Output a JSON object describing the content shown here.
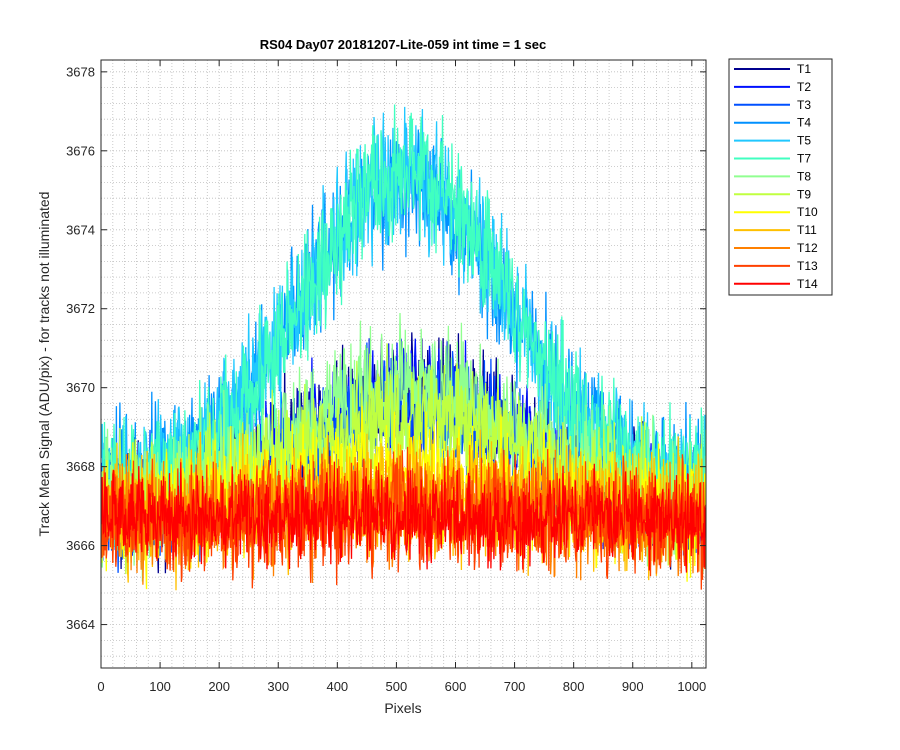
{
  "chart_data": {
    "type": "line",
    "title": "RS04 Day07 20181207-Lite-059 int time = 1 sec",
    "xlabel": "Pixels",
    "ylabel": "Track Mean Signal (ADU/pix) - for tracks not illuminated",
    "xlim": [
      0,
      1024
    ],
    "ylim": [
      3662.9,
      3678.3
    ],
    "xticks": [
      0,
      100,
      200,
      300,
      400,
      500,
      600,
      700,
      800,
      900,
      1000
    ],
    "yticks": [
      3664,
      3666,
      3668,
      3670,
      3672,
      3674,
      3676,
      3678
    ],
    "grid": "major and minor (dotted)",
    "legend_position": "outside-right-top",
    "x": {
      "start": 1,
      "end": 1024,
      "step": 1
    },
    "series": [
      {
        "name": "T1",
        "color": "#00008F",
        "baseline": 3667.0,
        "noise": 1.2,
        "peak": 3.0,
        "peak_center": 520,
        "peak_width": 260
      },
      {
        "name": "T2",
        "color": "#0010FF",
        "baseline": 3667.0,
        "noise": 1.2,
        "peak": 2.8,
        "peak_center": 520,
        "peak_width": 260
      },
      {
        "name": "T3",
        "color": "#0050FF",
        "baseline": 3667.0,
        "noise": 1.2,
        "peak": 2.6,
        "peak_center": 520,
        "peak_width": 260
      },
      {
        "name": "T4",
        "color": "#0090FF",
        "baseline": 3667.5,
        "noise": 1.3,
        "peak": 7.6,
        "peak_center": 510,
        "peak_width": 245
      },
      {
        "name": "T5",
        "color": "#20C8FF",
        "baseline": 3667.5,
        "noise": 1.3,
        "peak": 7.8,
        "peak_center": 515,
        "peak_width": 245
      },
      {
        "name": "T7",
        "color": "#40FFC0",
        "baseline": 3667.5,
        "noise": 1.3,
        "peak": 7.9,
        "peak_center": 520,
        "peak_width": 245
      },
      {
        "name": "T8",
        "color": "#90FF90",
        "baseline": 3667.0,
        "noise": 1.3,
        "peak": 3.0,
        "peak_center": 520,
        "peak_width": 270
      },
      {
        "name": "T9",
        "color": "#C0FF40",
        "baseline": 3667.0,
        "noise": 1.2,
        "peak": 2.2,
        "peak_center": 520,
        "peak_width": 280
      },
      {
        "name": "T10",
        "color": "#FFFF00",
        "baseline": 3666.8,
        "noise": 1.2,
        "peak": 1.0,
        "peak_center": 520,
        "peak_width": 300
      },
      {
        "name": "T11",
        "color": "#FFC000",
        "baseline": 3666.7,
        "noise": 1.2,
        "peak": 0.6,
        "peak_center": 520,
        "peak_width": 300
      },
      {
        "name": "T12",
        "color": "#FF8000",
        "baseline": 3666.6,
        "noise": 1.1,
        "peak": 0.4,
        "peak_center": 520,
        "peak_width": 300
      },
      {
        "name": "T13",
        "color": "#FF4000",
        "baseline": 3666.6,
        "noise": 1.1,
        "peak": 0.2,
        "peak_center": 520,
        "peak_width": 300
      },
      {
        "name": "T14",
        "color": "#FF0000",
        "baseline": 3666.7,
        "noise": 0.9,
        "peak": 0.0,
        "peak_center": 520,
        "peak_width": 300
      }
    ]
  }
}
